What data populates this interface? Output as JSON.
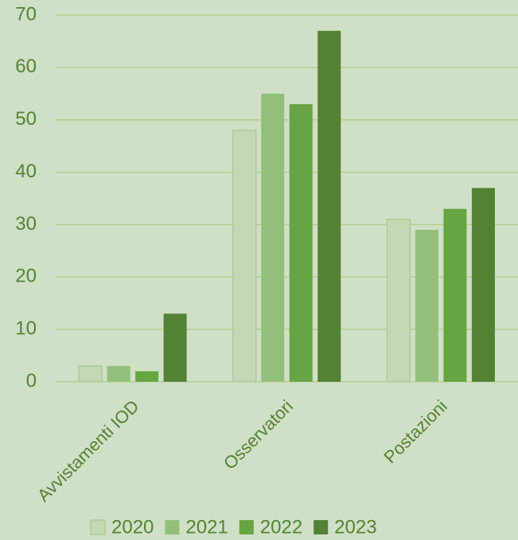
{
  "chart_data": {
    "type": "bar",
    "categories": [
      "Avvistamenti IOD",
      "Osservatori",
      "Postazioni"
    ],
    "series": [
      {
        "name": "2020",
        "color": "#c3d9b6",
        "values": [
          3,
          48,
          31
        ]
      },
      {
        "name": "2021",
        "color": "#93bf7c",
        "values": [
          3,
          55,
          29
        ]
      },
      {
        "name": "2022",
        "color": "#67a442",
        "values": [
          2,
          53,
          33
        ]
      },
      {
        "name": "2023",
        "color": "#548235",
        "values": [
          13,
          67,
          37
        ]
      }
    ],
    "ylim": [
      0,
      70
    ],
    "yticks": [
      0,
      10,
      20,
      30,
      40,
      50,
      60,
      70
    ],
    "grid": true,
    "legend": "bottom"
  }
}
